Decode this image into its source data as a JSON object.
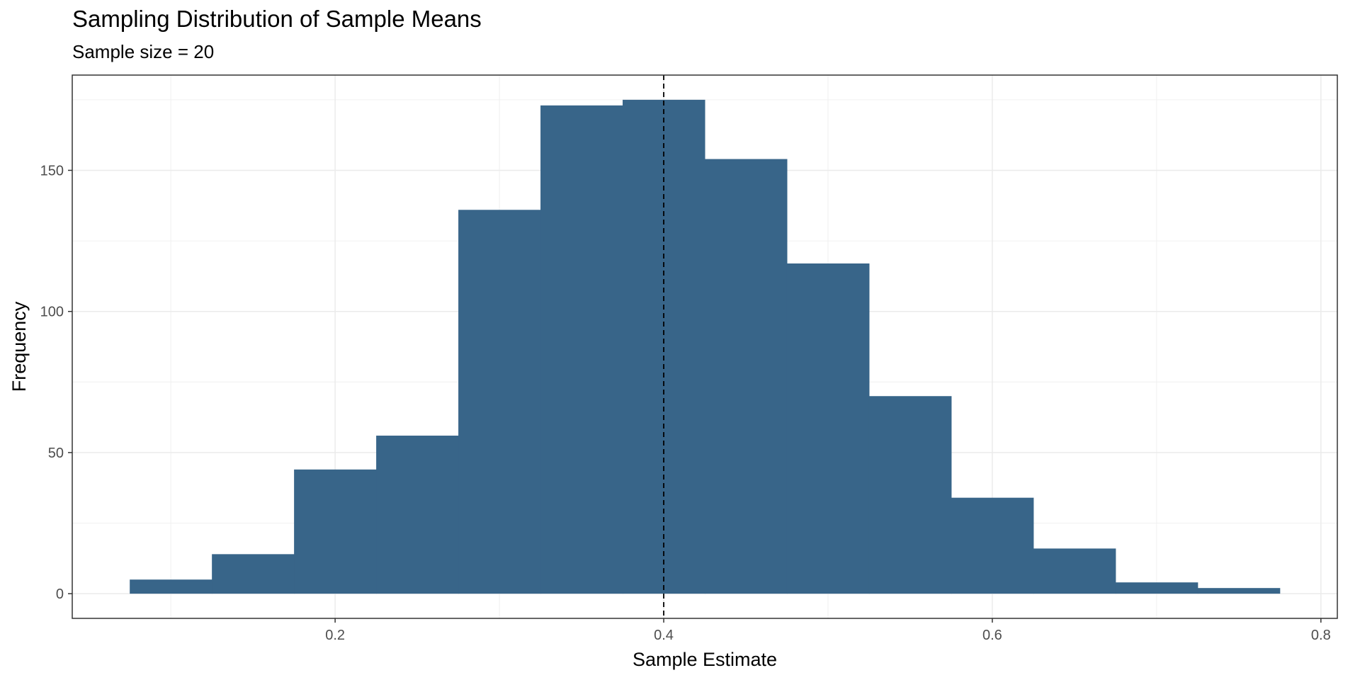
{
  "chart_data": {
    "type": "bar",
    "title": "Sampling Distribution of Sample Means",
    "subtitle": "Sample size = 20",
    "xlabel": "Sample Estimate",
    "ylabel": "Frequency",
    "bin_width": 0.05,
    "bins": [
      {
        "x0": 0.075,
        "x1": 0.125,
        "count": 5
      },
      {
        "x0": 0.125,
        "x1": 0.175,
        "count": 14
      },
      {
        "x0": 0.175,
        "x1": 0.225,
        "count": 44
      },
      {
        "x0": 0.225,
        "x1": 0.275,
        "count": 56
      },
      {
        "x0": 0.275,
        "x1": 0.325,
        "count": 136
      },
      {
        "x0": 0.325,
        "x1": 0.375,
        "count": 173
      },
      {
        "x0": 0.375,
        "x1": 0.425,
        "count": 175
      },
      {
        "x0": 0.425,
        "x1": 0.475,
        "count": 154
      },
      {
        "x0": 0.475,
        "x1": 0.525,
        "count": 117
      },
      {
        "x0": 0.525,
        "x1": 0.575,
        "count": 70
      },
      {
        "x0": 0.575,
        "x1": 0.625,
        "count": 34
      },
      {
        "x0": 0.625,
        "x1": 0.675,
        "count": 16
      },
      {
        "x0": 0.675,
        "x1": 0.725,
        "count": 4
      },
      {
        "x0": 0.725,
        "x1": 0.775,
        "count": 2
      }
    ],
    "reference_line": {
      "x": 0.4,
      "style": "dashed"
    },
    "xlim": [
      0.04,
      0.81
    ],
    "ylim": [
      -8.75,
      183.75
    ],
    "xticks": [
      0.2,
      0.4,
      0.6,
      0.8
    ],
    "xtick_labels": [
      "0.2",
      "0.4",
      "0.6",
      "0.8"
    ],
    "yticks": [
      0,
      50,
      100,
      150
    ],
    "ytick_labels": [
      "0",
      "50",
      "100",
      "150"
    ],
    "grid": true,
    "bar_color": "#386589"
  }
}
